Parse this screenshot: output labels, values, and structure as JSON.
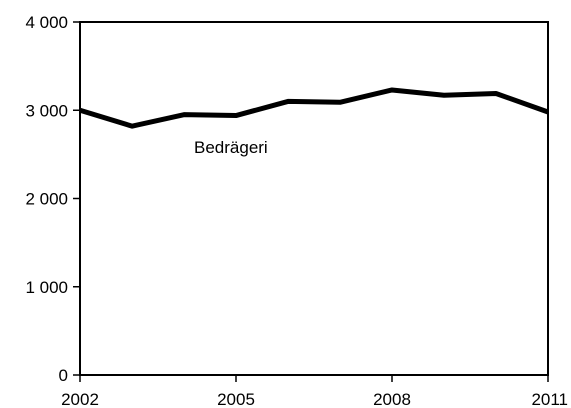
{
  "chart_data": {
    "type": "line",
    "x": [
      2002,
      2003,
      2004,
      2005,
      2006,
      2007,
      2008,
      2009,
      2010,
      2011
    ],
    "series": [
      {
        "name": "Bedrägeri",
        "values": [
          3000,
          2820,
          2950,
          2940,
          3100,
          3090,
          3230,
          3170,
          3190,
          2980
        ]
      }
    ],
    "xlim": [
      2002,
      2011
    ],
    "ylim": [
      0,
      4000
    ],
    "x_ticks": [
      "2002",
      "2005",
      "2008",
      "2011"
    ],
    "y_ticks": [
      "0",
      "1 000",
      "2 000",
      "3 000",
      "4 000"
    ],
    "grid": false,
    "legend": "none",
    "annotations": [
      {
        "text": "Bedrägeri"
      }
    ],
    "line_color": "#000000"
  }
}
